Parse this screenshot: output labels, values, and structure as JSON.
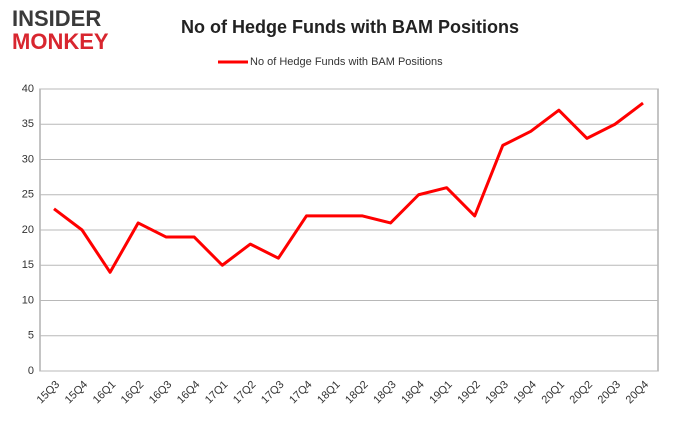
{
  "logo": {
    "line1": "INSIDER",
    "line2": "MONKEY"
  },
  "chart_data": {
    "type": "line",
    "title": "No of Hedge Funds with BAM Positions",
    "categories": [
      "15Q3",
      "15Q4",
      "16Q1",
      "16Q2",
      "16Q3",
      "16Q4",
      "17Q1",
      "17Q2",
      "17Q3",
      "17Q4",
      "18Q1",
      "18Q2",
      "18Q3",
      "18Q4",
      "19Q1",
      "19Q2",
      "19Q3",
      "19Q4",
      "20Q1",
      "20Q2",
      "20Q3",
      "20Q4"
    ],
    "series": [
      {
        "name": "No of Hedge Funds with BAM Positions",
        "color": "#ff0000",
        "values": [
          23,
          20,
          14,
          21,
          19,
          19,
          15,
          18,
          16,
          22,
          22,
          22,
          21,
          25,
          26,
          22,
          32,
          34,
          37,
          33,
          35,
          38
        ]
      }
    ],
    "ylim": [
      0,
      40
    ],
    "yticks": [
      0,
      5,
      10,
      15,
      20,
      25,
      30,
      35,
      40
    ],
    "grid": true,
    "legend": "top"
  }
}
